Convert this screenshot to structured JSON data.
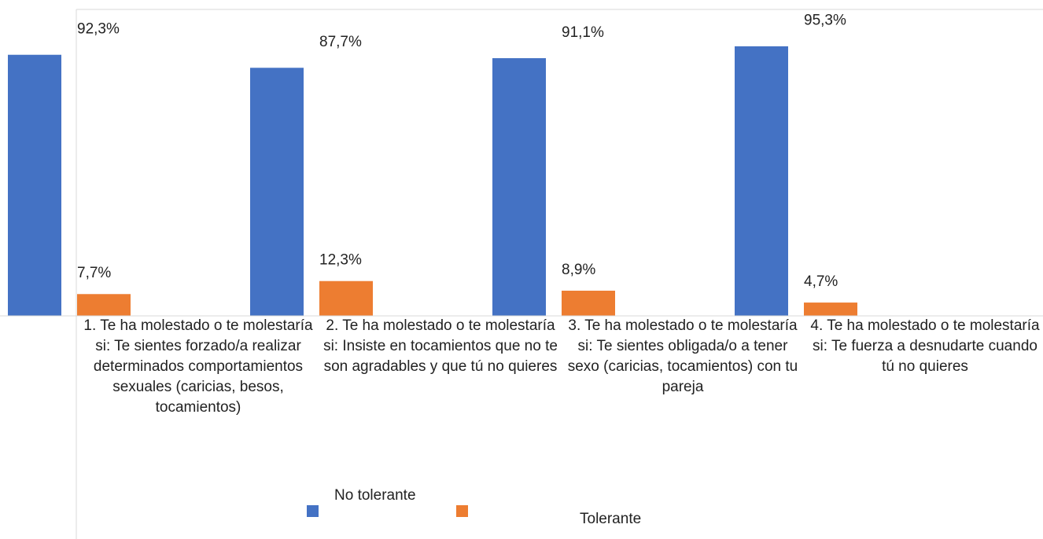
{
  "chart_data": {
    "type": "bar",
    "categories": [
      "1. Te ha molestado o te molestaría si: Te sientes forzado/a realizar determinados comportamientos sexuales (caricias, besos, tocamientos)",
      "2. Te ha molestado o te molestaría si: Insiste en tocamientos que no te son agradables y que tú no quieres",
      "3. Te ha molestado o te molestaría si: Te sientes obligada/o a tener sexo (caricias, tocamientos) con tu pareja",
      "4. Te ha molestado o te molestaría si: Te fuerza a desnudarte cuando tú no quieres"
    ],
    "series": [
      {
        "name": "No tolerante",
        "color": "#4472c4",
        "values": [
          92.3,
          87.7,
          91.1,
          95.3
        ],
        "value_labels": [
          "92,3%",
          "87,7%",
          "91,1%",
          "95,3%"
        ]
      },
      {
        "name": "Tolerante",
        "color": "#ed7d31",
        "values": [
          7.7,
          12.3,
          8.9,
          4.7
        ],
        "value_labels": [
          "7,7%",
          "12,3%",
          "8,9%",
          "4,7%"
        ]
      }
    ],
    "ylim": [
      0,
      100
    ],
    "legend": "bottom"
  }
}
